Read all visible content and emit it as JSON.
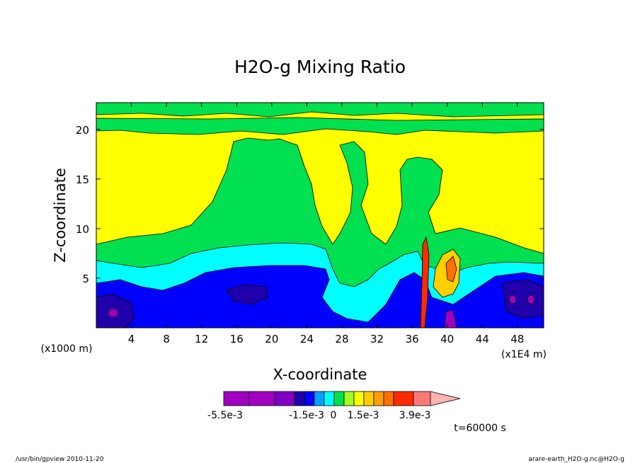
{
  "chart_data": {
    "type": "heatmap",
    "title": "H2O-g Mixing Ratio",
    "xlabel": "X-coordinate",
    "ylabel": "Z-coordinate",
    "x_unit_left": "(x1000 m)",
    "x_unit_right": "(x1E4 m)",
    "xlim": [
      0,
      51
    ],
    "ylim": [
      0,
      22.7
    ],
    "x_ticks": [
      4,
      8,
      12,
      16,
      20,
      24,
      28,
      32,
      36,
      40,
      44,
      48
    ],
    "y_ticks": [
      5,
      10,
      15,
      20
    ],
    "grid": false,
    "time_label": "t=60000 s",
    "colorbar": {
      "levels": [
        -0.0055,
        -0.0045,
        -0.0035,
        -0.0025,
        -0.0015,
        -0.001,
        -0.0005,
        0,
        0.0005,
        0.001,
        0.0015,
        0.002,
        0.0025,
        0.003,
        0.0039
      ],
      "colors": [
        "#a000c0",
        "#a000c0",
        "#7f00c0",
        "#1f00aa",
        "#0000ff",
        "#00a0ff",
        "#00ffff",
        "#00e050",
        "#a0ff20",
        "#ffff00",
        "#ffd000",
        "#ffa000",
        "#ff7000",
        "#ff2a00",
        "#ff7878",
        "#ffb4b4"
      ],
      "tick_labels": [
        "-5.5e-3",
        "-1.5e-3",
        "0",
        "1.5e-3",
        "3.9e-3"
      ]
    },
    "regions": [
      {
        "level": "green",
        "z": [
          0,
          9.0
        ]
      },
      {
        "level": "cyan",
        "z": [
          0,
          8.2
        ]
      },
      {
        "level": "blue",
        "z": [
          0,
          6.5
        ]
      },
      {
        "level": "darkblue",
        "z": [
          0,
          4.5
        ]
      }
    ]
  },
  "footer": {
    "program": "/usr/bin/gpview   2010-11-20",
    "file": "arare-earth_H2O-g.nc@H2O-g"
  }
}
